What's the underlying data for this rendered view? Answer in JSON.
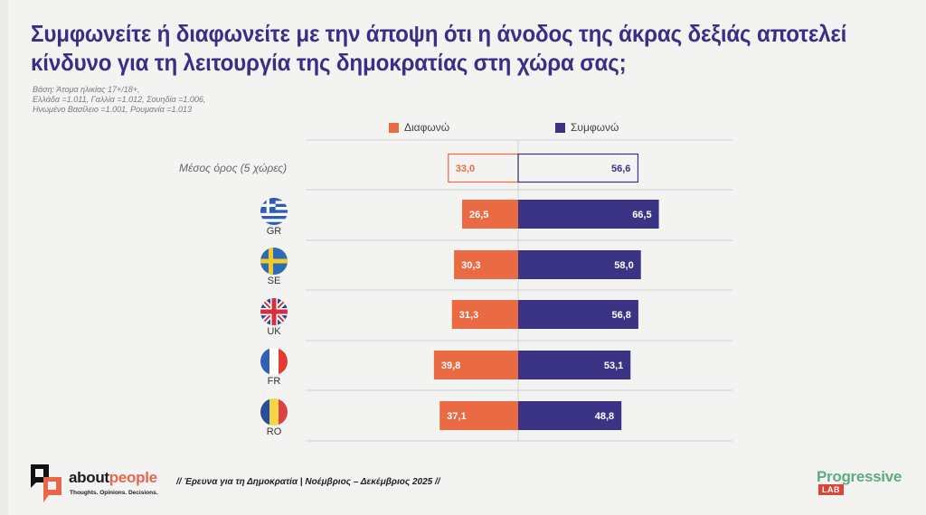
{
  "header": {
    "title_line1": "Συμφωνείτε ή διαφωνείτε με την άποψη ότι η άνοδος της άκρας δεξιάς αποτελεί",
    "title_line2": "κίνδυνο για τη λειτουργία της δημοκρατίας στη χώρα σας;",
    "base_lines": [
      "Βάση: Άτομα ηλικίας 17+/18+,",
      "Ελλάδα =1.011, Γαλλία =1.012, Σουηδία =1.006,",
      "Ηνωμένο Βασίλειο =1.001, Ρουμανία =1.013"
    ]
  },
  "colors": {
    "disagree": "#ea6a44",
    "agree": "#3b3484",
    "title": "#3a2f86"
  },
  "chart_data": {
    "type": "bar",
    "orientation": "horizontal-diverging",
    "title": "Συμφωνείτε ή διαφωνείτε με την άποψη ότι η άνοδος της άκρας δεξιάς αποτελεί κίνδυνο για τη λειτουργία της δημοκρατίας στη χώρα σας;",
    "legend": [
      "Διαφωνώ",
      "Συμφωνώ"
    ],
    "legend_position": "top",
    "categories": [
      "Μέσος όρος (5 χώρες)",
      "GR",
      "SE",
      "UK",
      "FR",
      "RO"
    ],
    "series": [
      {
        "name": "Διαφωνώ",
        "values": [
          33.0,
          26.5,
          30.3,
          31.3,
          39.8,
          37.1
        ],
        "labels": [
          "33,0",
          "26,5",
          "30,3",
          "31,3",
          "39,8",
          "37,1"
        ]
      },
      {
        "name": "Συμφωνώ",
        "values": [
          56.6,
          66.5,
          58.0,
          56.8,
          53.1,
          48.8
        ],
        "labels": [
          "56,6",
          "66,5",
          "58,0",
          "56,8",
          "53,1",
          "48,8"
        ]
      }
    ],
    "average_row_style": "outlined",
    "grid": false
  },
  "rows": [
    {
      "label": "Μέσος όρος (5 χώρες)",
      "kind": "average"
    },
    {
      "code": "GR",
      "flag": "greece-flag-icon"
    },
    {
      "code": "SE",
      "flag": "sweden-flag-icon"
    },
    {
      "code": "UK",
      "flag": "uk-flag-icon"
    },
    {
      "code": "FR",
      "flag": "france-flag-icon"
    },
    {
      "code": "RO",
      "flag": "romania-flag-icon"
    }
  ],
  "footer": {
    "survey_text": "// Έρευνα για τη Δημοκρατία | Νοέμβριος – Δεκέμβριος 2025 //",
    "aboutpeople_a": "about",
    "aboutpeople_b": "people",
    "aboutpeople_tagline": "Thoughts. Opinions. Decisions.",
    "progressive_word": "Progressive",
    "progressive_lab": "LAB"
  }
}
